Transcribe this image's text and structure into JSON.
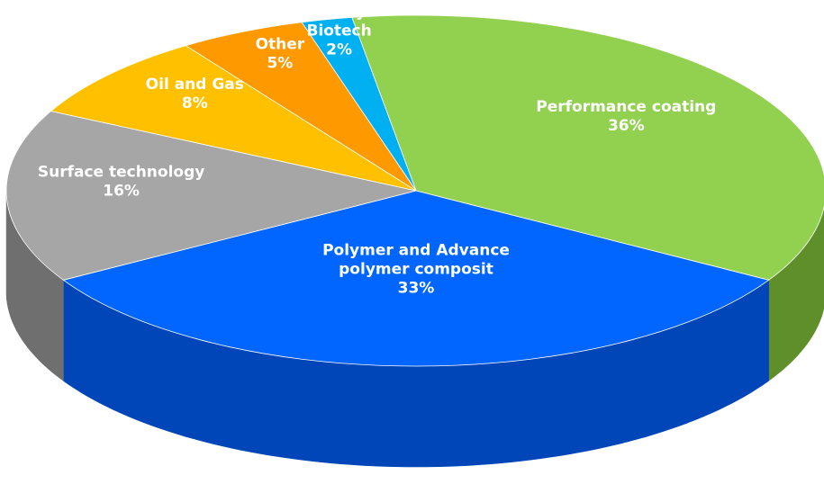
{
  "chart_data": {
    "type": "pie",
    "style": "3d",
    "title": "",
    "legend": "none",
    "slices": [
      {
        "label": "Performance coating",
        "value": 36,
        "value_label": "36%",
        "color": "#92d050",
        "side": "#5e8f2b"
      },
      {
        "label": "Polymer and Advance polymer composit",
        "value": 33,
        "value_label": "33%",
        "color": "#0066ff",
        "side": "#0046b8"
      },
      {
        "label": "Surface technology",
        "value": 16,
        "value_label": "16%",
        "color": "#a6a6a6",
        "side": "#6f6f6f"
      },
      {
        "label": "Oil and Gas",
        "value": 8,
        "value_label": "8%",
        "color": "#ffc000",
        "side": "#c08f00"
      },
      {
        "label": "Other",
        "value": 5,
        "value_label": "5%",
        "color": "#ff9900",
        "side": "#c06d00"
      },
      {
        "label": "Lifestyl Biotech",
        "value": 2,
        "value_label": "2%",
        "color": "#00b0f0",
        "side": "#0082b3"
      }
    ]
  }
}
